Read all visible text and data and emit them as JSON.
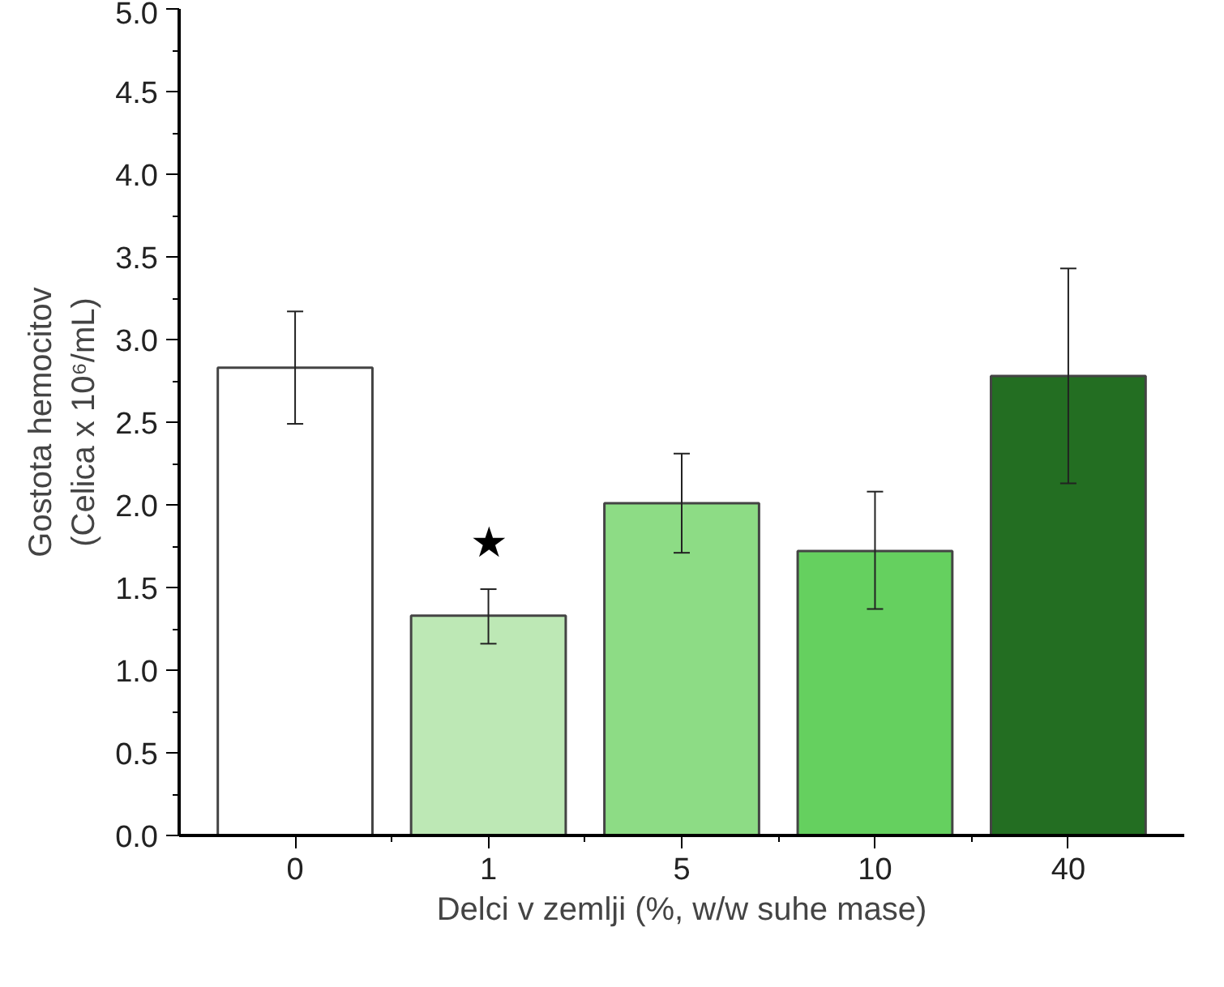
{
  "chart_data": {
    "type": "bar",
    "xlabel": "Delci v zemlji (%, w/w suhe mase)",
    "ylabel": "Gostota hemocitov\n(Celica x 10⁶/mL)",
    "categories": [
      "0",
      "1",
      "5",
      "10",
      "40"
    ],
    "values": [
      2.83,
      1.33,
      2.01,
      1.72,
      2.78
    ],
    "colors": [
      "#ffffff",
      "#bde8b5",
      "#8ddc85",
      "#65d05f",
      "#236e22"
    ],
    "errors": [
      [
        2.49,
        3.17
      ],
      [
        1.16,
        1.49
      ],
      [
        1.71,
        2.31
      ],
      [
        1.37,
        2.08
      ],
      [
        2.13,
        3.43
      ]
    ],
    "ylim": [
      0,
      5
    ],
    "yticks": [
      {
        "value": 0,
        "label": "0.0"
      },
      {
        "value": 0.5,
        "label": "0.5"
      },
      {
        "value": 1,
        "label": "1.0"
      },
      {
        "value": 1.5,
        "label": "1.5"
      },
      {
        "value": 2,
        "label": "2.0"
      },
      {
        "value": 2.5,
        "label": "2.5"
      },
      {
        "value": 3,
        "label": "3.0"
      },
      {
        "value": 3.5,
        "label": "3.5"
      },
      {
        "value": 4,
        "label": "4.0"
      },
      {
        "value": 4.5,
        "label": "4.5"
      },
      {
        "value": 5,
        "label": "5.0"
      }
    ],
    "annotations": [
      "★"
    ],
    "grid": false
  }
}
